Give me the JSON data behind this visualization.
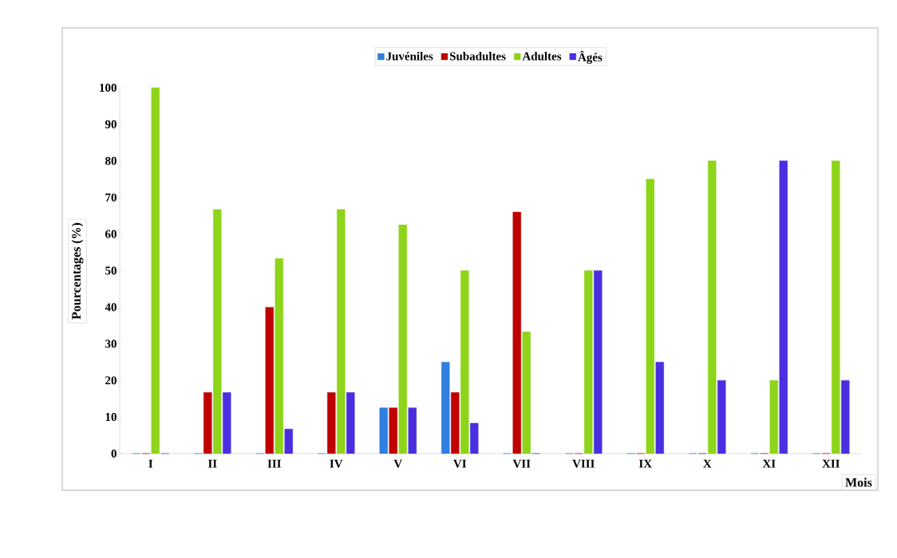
{
  "chart_data": {
    "type": "bar",
    "xlabel": "Mois",
    "ylabel": "Pourcentages (%)",
    "categories": [
      "I",
      "II",
      "III",
      "IV",
      "V",
      "VI",
      "VII",
      "VIII",
      "IX",
      "X",
      "XI",
      "XII"
    ],
    "series": [
      {
        "name": "Juvéniles",
        "color": "#2f7fe0",
        "values": [
          0,
          0,
          0,
          0,
          12.5,
          25,
          0,
          0,
          0,
          0,
          0,
          0
        ]
      },
      {
        "name": "Subadultes",
        "color": "#c00000",
        "values": [
          0,
          16.7,
          40,
          16.7,
          12.5,
          16.7,
          66,
          0,
          0,
          0,
          0,
          0
        ]
      },
      {
        "name": "Adultes",
        "color": "#8ed41a",
        "values": [
          100,
          66.7,
          53.3,
          66.7,
          62.5,
          50,
          33.3,
          50,
          75,
          80,
          20,
          80
        ]
      },
      {
        "name": "Âgés",
        "color": "#4a2fe0",
        "values": [
          0,
          16.7,
          6.7,
          16.7,
          12.5,
          8.3,
          0,
          50,
          25,
          20,
          80,
          20
        ]
      }
    ],
    "ylim": [
      0,
      100
    ],
    "yticks": [
      0,
      10,
      20,
      30,
      40,
      50,
      60,
      70,
      80,
      90,
      100
    ],
    "grid": false,
    "legend": "top"
  }
}
